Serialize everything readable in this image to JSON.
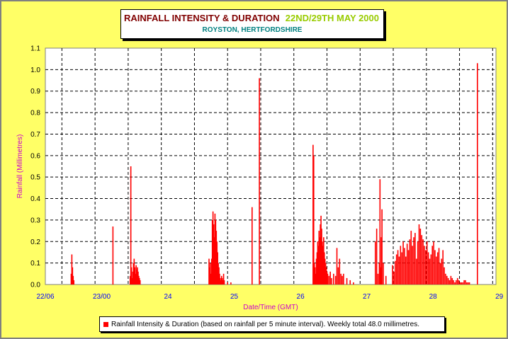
{
  "title": {
    "main": "RAINFALL INTENSITY & DURATION",
    "dates": "22ND/29TH MAY 2000",
    "location": "ROYSTON, HERTFORDSHIRE"
  },
  "legend": {
    "text": "Rainfall Intensity & Duration (based on rainfall per 5 minute interval). Weekly total 48.0 millimetres."
  },
  "colors": {
    "bars": "#ff0000",
    "background": "#ffff66",
    "plot": "#ffffff",
    "axis_label": "#cc00cc",
    "tick_label": "#0000ff"
  },
  "chart_data": {
    "type": "bar",
    "title": "RAINFALL INTENSITY & DURATION",
    "xlabel": "Date/Time (GMT)",
    "ylabel": "Rainfall (Millimetres)",
    "ylim": [
      0,
      1.1
    ],
    "xlim": [
      0,
      6.8
    ],
    "x_tick_labels": [
      "22/06",
      "23/00",
      "24",
      "25",
      "26",
      "27",
      "28",
      "29"
    ],
    "y_tick_labels": [
      "0.0",
      "0.1",
      "0.2",
      "0.3",
      "0.4",
      "0.5",
      "0.6",
      "0.7",
      "0.8",
      "0.9",
      "1.0",
      "1.1"
    ],
    "grid": true,
    "series": [
      {
        "x": [
          0.39,
          0.4,
          0.41,
          0.42,
          0.43,
          1.02,
          1.28,
          1.29,
          1.3,
          1.31,
          1.32,
          1.33,
          1.34,
          1.35,
          1.36,
          1.37,
          1.38,
          1.39,
          1.4,
          1.41,
          1.42,
          1.43,
          2.47,
          2.48,
          2.49,
          2.5,
          2.51,
          2.52,
          2.53,
          2.54,
          2.55,
          2.56,
          2.57,
          2.58,
          2.59,
          2.6,
          2.61,
          2.62,
          2.63,
          2.64,
          2.65,
          2.66,
          2.67,
          2.68,
          2.69,
          2.7,
          2.75,
          2.8,
          3.12,
          3.23,
          4.04,
          4.05,
          4.06,
          4.07,
          4.08,
          4.09,
          4.1,
          4.11,
          4.12,
          4.13,
          4.14,
          4.15,
          4.16,
          4.17,
          4.18,
          4.19,
          4.2,
          4.21,
          4.22,
          4.23,
          4.24,
          4.25,
          4.26,
          4.28,
          4.3,
          4.32,
          4.35,
          4.38,
          4.4,
          4.42,
          4.44,
          4.46,
          4.48,
          4.5,
          4.55,
          4.6,
          4.65,
          4.98,
          5.0,
          5.02,
          5.04,
          5.05,
          5.06,
          5.07,
          5.08,
          5.1,
          5.14,
          5.24,
          5.26,
          5.28,
          5.3,
          5.32,
          5.34,
          5.36,
          5.38,
          5.4,
          5.42,
          5.44,
          5.46,
          5.48,
          5.5,
          5.52,
          5.54,
          5.56,
          5.58,
          5.6,
          5.62,
          5.64,
          5.66,
          5.68,
          5.7,
          5.72,
          5.74,
          5.76,
          5.78,
          5.8,
          5.82,
          5.84,
          5.86,
          5.88,
          5.9,
          5.92,
          5.94,
          5.96,
          5.98,
          6.0,
          6.02,
          6.04,
          6.06,
          6.08,
          6.1,
          6.12,
          6.14,
          6.16,
          6.18,
          6.2,
          6.22,
          6.24,
          6.26,
          6.28,
          6.3,
          6.32,
          6.34,
          6.36,
          6.38,
          6.4,
          6.52
        ],
        "values": [
          0.05,
          0.14,
          0.08,
          0.04,
          0.02,
          0.27,
          0.04,
          0.55,
          0.08,
          0.03,
          0.06,
          0.1,
          0.12,
          0.08,
          0.05,
          0.09,
          0.07,
          0.08,
          0.06,
          0.04,
          0.03,
          0.02,
          0.12,
          0.08,
          0.1,
          0.05,
          0.12,
          0.3,
          0.34,
          0.28,
          0.22,
          0.33,
          0.3,
          0.25,
          0.2,
          0.15,
          0.1,
          0.08,
          0.05,
          0.03,
          0.02,
          0.04,
          0.03,
          0.02,
          0.05,
          0.02,
          0.01,
          0.01,
          0.36,
          0.96,
          0.65,
          0.6,
          0.1,
          0.08,
          0.05,
          0.12,
          0.15,
          0.2,
          0.18,
          0.25,
          0.22,
          0.28,
          0.32,
          0.26,
          0.2,
          0.18,
          0.22,
          0.15,
          0.12,
          0.1,
          0.08,
          0.06,
          0.05,
          0.04,
          0.06,
          0.03,
          0.05,
          0.04,
          0.17,
          0.08,
          0.12,
          0.05,
          0.04,
          0.05,
          0.03,
          0.02,
          0.01,
          0.2,
          0.26,
          0.05,
          0.1,
          0.49,
          0.08,
          0.22,
          0.35,
          0.1,
          0.04,
          0.09,
          0.06,
          0.11,
          0.14,
          0.16,
          0.13,
          0.18,
          0.15,
          0.2,
          0.17,
          0.13,
          0.19,
          0.16,
          0.21,
          0.25,
          0.18,
          0.22,
          0.24,
          0.12,
          0.2,
          0.28,
          0.26,
          0.23,
          0.21,
          0.18,
          0.16,
          0.2,
          0.15,
          0.12,
          0.14,
          0.18,
          0.2,
          0.16,
          0.13,
          0.15,
          0.17,
          0.1,
          0.12,
          0.16,
          0.08,
          0.05,
          0.04,
          0.03,
          0.02,
          0.04,
          0.03,
          0.02,
          0.01,
          0.02,
          0.03,
          0.02,
          0.01,
          0.01,
          0.01,
          0.02,
          0.02,
          0.01,
          0.01,
          0.01,
          1.03
        ]
      }
    ]
  }
}
